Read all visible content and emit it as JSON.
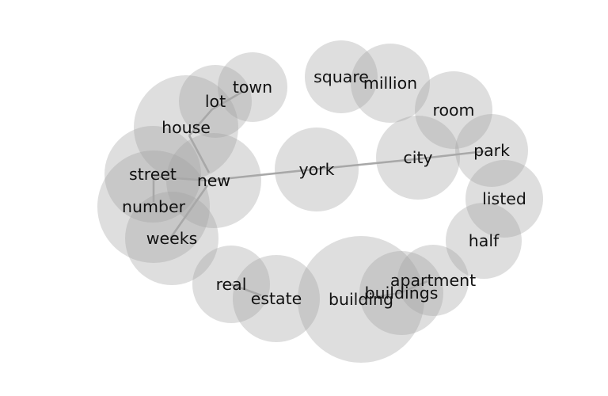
{
  "diagram": {
    "type": "word-bubble-network",
    "bubble_color": "#a0a0a0",
    "edge_color": "#a8a8a8",
    "text_color": "#111111",
    "words": [
      {
        "id": "york",
        "label": "york"
      },
      {
        "id": "city",
        "label": "city"
      },
      {
        "id": "new",
        "label": "new"
      },
      {
        "id": "house",
        "label": "house"
      },
      {
        "id": "lot",
        "label": "lot"
      },
      {
        "id": "town",
        "label": "town"
      },
      {
        "id": "street",
        "label": "street"
      },
      {
        "id": "number",
        "label": "number"
      },
      {
        "id": "weeks",
        "label": "weeks"
      },
      {
        "id": "real",
        "label": "real"
      },
      {
        "id": "estate",
        "label": "estate"
      },
      {
        "id": "building",
        "label": "building"
      },
      {
        "id": "buildings",
        "label": "buildings"
      },
      {
        "id": "apartment",
        "label": "apartment"
      },
      {
        "id": "half",
        "label": "half"
      },
      {
        "id": "listed",
        "label": "listed"
      },
      {
        "id": "park",
        "label": "park"
      },
      {
        "id": "room",
        "label": "room"
      },
      {
        "id": "million",
        "label": "million"
      },
      {
        "id": "square",
        "label": "square"
      }
    ],
    "edges": [
      [
        "new",
        "york"
      ],
      [
        "york",
        "city"
      ],
      [
        "city",
        "park"
      ],
      [
        "new",
        "house"
      ],
      [
        "house",
        "lot"
      ],
      [
        "lot",
        "town"
      ],
      [
        "new",
        "street"
      ],
      [
        "street",
        "number"
      ],
      [
        "new",
        "weeks"
      ],
      [
        "real",
        "estate"
      ],
      [
        "building",
        "buildings"
      ],
      [
        "buildings",
        "apartment"
      ]
    ]
  }
}
